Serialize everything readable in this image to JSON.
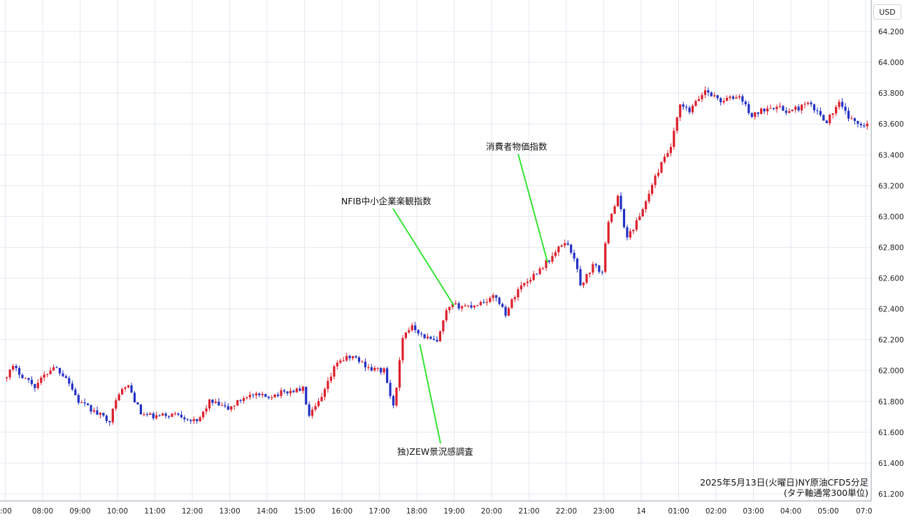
{
  "currency": "USD",
  "caption": {
    "line1": "2025年5月13日(火曜日)NY原油CFD5分足",
    "line2": "(タテ軸通常300単位)"
  },
  "colors": {
    "up": "#dd1f2c",
    "down": "#2330c4",
    "annotation_line": "#35e335",
    "grid": "#e4e9f0"
  },
  "chart_data": {
    "type": "candlestick",
    "title": "",
    "y_ticks": [
      "61.200",
      "61.400",
      "61.600",
      "61.800",
      "62.000",
      "62.200",
      "62.400",
      "62.600",
      "62.800",
      "63.000",
      "63.200",
      "63.400",
      "63.600",
      "63.800",
      "64.000",
      "64.200"
    ],
    "ylim": [
      61.2,
      64.2
    ],
    "x_ticks": [
      ":00",
      "08:00",
      "09:00",
      "10:00",
      "11:00",
      "12:00",
      "13:00",
      "14:00",
      "15:00",
      "16:00",
      "17:00",
      "18:00",
      "19:00",
      "20:00",
      "21:00",
      "22:00",
      "23:00",
      "14",
      "01:00",
      "02:00",
      "03:00",
      "04:00",
      "05:00",
      "07:0"
    ],
    "grid": true,
    "keypoints": [
      {
        "time": "07:00",
        "value": 61.95
      },
      {
        "time": "07:15",
        "value": 62.02
      },
      {
        "time": "07:50",
        "value": 61.9
      },
      {
        "time": "08:20",
        "value": 62.03
      },
      {
        "time": "08:40",
        "value": 61.96
      },
      {
        "time": "09:00",
        "value": 61.8
      },
      {
        "time": "09:30",
        "value": 61.72
      },
      {
        "time": "09:50",
        "value": 61.68
      },
      {
        "time": "10:05",
        "value": 61.86
      },
      {
        "time": "10:20",
        "value": 61.9
      },
      {
        "time": "10:40",
        "value": 61.72
      },
      {
        "time": "11:00",
        "value": 61.7
      },
      {
        "time": "11:40",
        "value": 61.72
      },
      {
        "time": "12:10",
        "value": 61.66
      },
      {
        "time": "12:30",
        "value": 61.8
      },
      {
        "time": "13:00",
        "value": 61.75
      },
      {
        "time": "13:30",
        "value": 61.84
      },
      {
        "time": "14:00",
        "value": 61.83
      },
      {
        "time": "14:30",
        "value": 61.86
      },
      {
        "time": "15:00",
        "value": 61.88
      },
      {
        "time": "15:10",
        "value": 61.7
      },
      {
        "time": "15:30",
        "value": 61.82
      },
      {
        "time": "15:55",
        "value": 62.06
      },
      {
        "time": "16:20",
        "value": 62.09
      },
      {
        "time": "16:50",
        "value": 62.01
      },
      {
        "time": "17:10",
        "value": 62.0
      },
      {
        "time": "17:25",
        "value": 61.76
      },
      {
        "time": "17:40",
        "value": 62.2
      },
      {
        "time": "17:55",
        "value": 62.3
      },
      {
        "time": "18:10",
        "value": 62.23
      },
      {
        "time": "18:35",
        "value": 62.18
      },
      {
        "time": "18:50",
        "value": 62.38
      },
      {
        "time": "19:00",
        "value": 62.42
      },
      {
        "time": "19:30",
        "value": 62.42
      },
      {
        "time": "20:10",
        "value": 62.48
      },
      {
        "time": "20:25",
        "value": 62.37
      },
      {
        "time": "20:45",
        "value": 62.53
      },
      {
        "time": "21:10",
        "value": 62.62
      },
      {
        "time": "21:40",
        "value": 62.74
      },
      {
        "time": "22:00",
        "value": 62.84
      },
      {
        "time": "22:15",
        "value": 62.74
      },
      {
        "time": "22:25",
        "value": 62.55
      },
      {
        "time": "22:45",
        "value": 62.68
      },
      {
        "time": "23:00",
        "value": 62.64
      },
      {
        "time": "23:10",
        "value": 62.98
      },
      {
        "time": "23:25",
        "value": 63.12
      },
      {
        "time": "23:40",
        "value": 62.86
      },
      {
        "time": "24:00",
        "value": 63.0
      },
      {
        "time": "24:30",
        "value": 63.3
      },
      {
        "time": "24:50",
        "value": 63.45
      },
      {
        "time": "25:05",
        "value": 63.72
      },
      {
        "time": "25:20",
        "value": 63.68
      },
      {
        "time": "25:45",
        "value": 63.82
      },
      {
        "time": "26:10",
        "value": 63.75
      },
      {
        "time": "26:40",
        "value": 63.78
      },
      {
        "time": "27:00",
        "value": 63.65
      },
      {
        "time": "27:30",
        "value": 63.72
      },
      {
        "time": "28:00",
        "value": 63.68
      },
      {
        "time": "28:30",
        "value": 63.73
      },
      {
        "time": "29:00",
        "value": 63.62
      },
      {
        "time": "29:20",
        "value": 63.73
      },
      {
        "time": "29:40",
        "value": 63.62
      },
      {
        "time": "30:00",
        "value": 63.6
      }
    ],
    "annotations": [
      {
        "text": "NFIB中小企業楽観指数",
        "time": "19:00",
        "value": 62.42
      },
      {
        "text": "消費者物価指数",
        "time": "21:30",
        "value": 62.7
      },
      {
        "text": "独)ZEW景況感調査",
        "time": "18:05",
        "value": 62.17
      }
    ]
  }
}
